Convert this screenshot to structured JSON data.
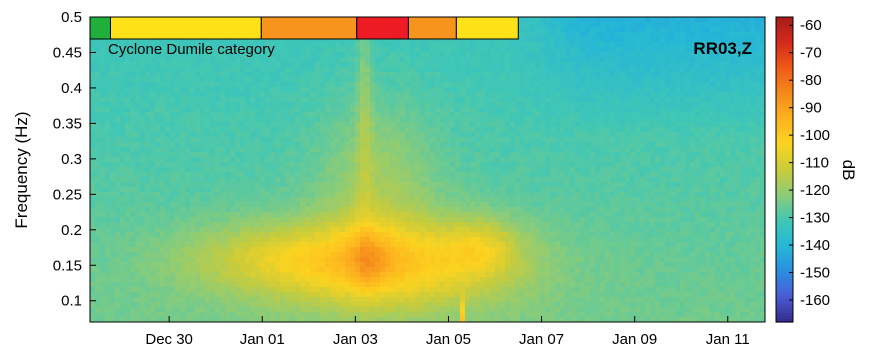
{
  "chart_data": {
    "type": "heatmap",
    "ylabel": "Frequency (Hz)",
    "x_ticks": [
      "Dec 30",
      "Jan 01",
      "Jan 03",
      "Jan 05",
      "Jan 07",
      "Jan 09",
      "Jan 11"
    ],
    "x_tick_days": [
      30,
      32,
      34,
      36,
      38,
      40,
      42
    ],
    "x_range_days": [
      28.3,
      42.8
    ],
    "y_ticks": [
      "0.1",
      "0.15",
      "0.2",
      "0.25",
      "0.3",
      "0.35",
      "0.4",
      "0.45",
      "0.5"
    ],
    "y_tick_values": [
      0.1,
      0.15,
      0.2,
      0.25,
      0.3,
      0.35,
      0.4,
      0.45,
      0.5
    ],
    "ylim": [
      0.07,
      0.5
    ],
    "station_label": "RR03,Z",
    "colorbar": {
      "label": "dB",
      "range": [
        -168,
        -57
      ],
      "ticks": [
        "-60",
        "-70",
        "-80",
        "-90",
        "-100",
        "-110",
        "-120",
        "-130",
        "-140",
        "-150",
        "-160"
      ],
      "tick_values": [
        -60,
        -70,
        -80,
        -90,
        -100,
        -110,
        -120,
        -130,
        -140,
        -150,
        -160
      ],
      "colormap": [
        "#352a87",
        "#4a5bd6",
        "#2a8fe0",
        "#25b7d6",
        "#42c7b4",
        "#8ccc78",
        "#c9cc3b",
        "#fbd320",
        "#fdb31f",
        "#f58a1c",
        "#ef5a17",
        "#d42a1c",
        "#a61d1d"
      ]
    },
    "category_bar": {
      "title": "Cyclone Dumile category",
      "segments": [
        {
          "start_day": 28.3,
          "end_day": 28.74,
          "color": "#1faf3a"
        },
        {
          "start_day": 28.74,
          "end_day": 31.98,
          "color": "#ffe119"
        },
        {
          "start_day": 31.98,
          "end_day": 34.03,
          "color": "#f7941d"
        },
        {
          "start_day": 34.03,
          "end_day": 35.14,
          "color": "#ed1c24"
        },
        {
          "start_day": 35.14,
          "end_day": 36.17,
          "color": "#f7941d"
        },
        {
          "start_day": 36.17,
          "end_day": 37.5,
          "color": "#ffe119"
        }
      ]
    },
    "spectral_field_dB": {
      "background_low_freq": -125,
      "background_high_freq": -133,
      "late_period_high_freq": -142,
      "storm_peak": {
        "center_day": 34.3,
        "center_freq": 0.16,
        "value": -98
      },
      "storm_core": {
        "center_day": 34.6,
        "center_freq": 0.24,
        "value": -103
      },
      "secondary_peak": {
        "center_day": 36.6,
        "center_freq": 0.175,
        "value": -104
      },
      "spike": {
        "day": 36.3,
        "value": -85
      }
    }
  }
}
